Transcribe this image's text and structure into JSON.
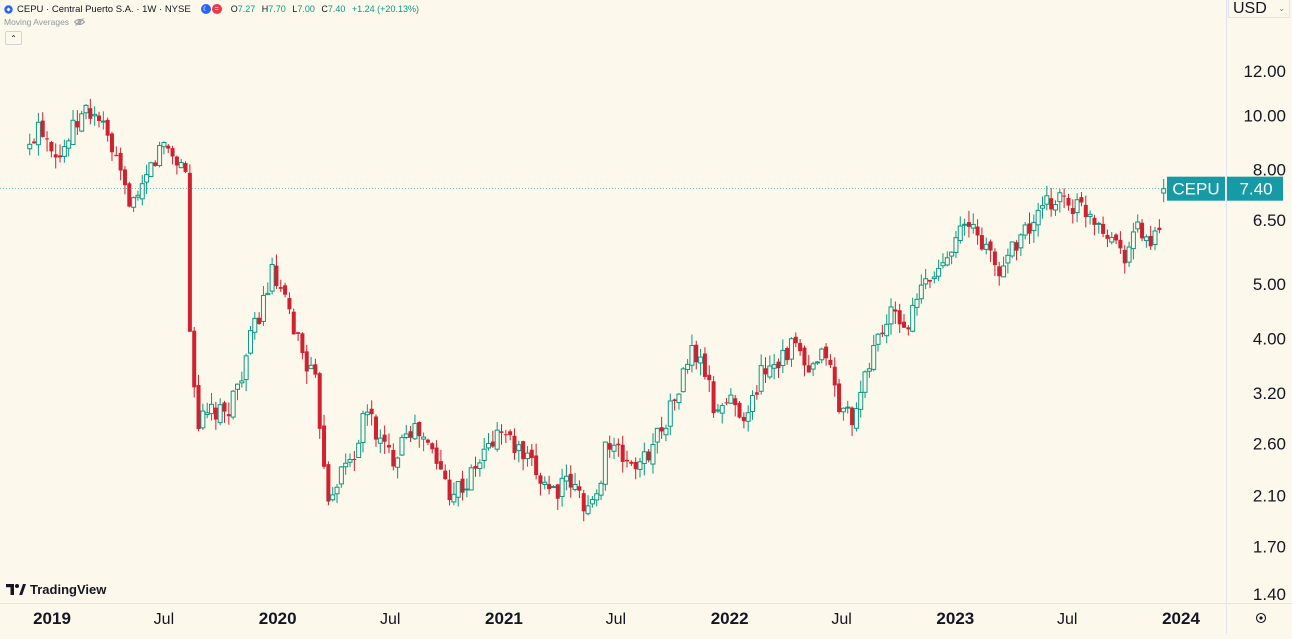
{
  "header": {
    "symbol": "CEPU · Central Puerto S.A. · 1W · NYSE",
    "ohlc": [
      {
        "k": "O",
        "v": "7.27"
      },
      {
        "k": "H",
        "v": "7.70"
      },
      {
        "k": "L",
        "v": "7.00"
      },
      {
        "k": "C",
        "v": "7.40"
      }
    ],
    "change": "+1.24 (+20.13%)",
    "indicator": "Moving Averages",
    "currency": "USD"
  },
  "brand": "TradingView",
  "colors": {
    "background": "#fdf8ec",
    "up": "#089981",
    "down": "#d1202f",
    "price_line": "#159aa6",
    "axis_text": "#131722",
    "grid_border": "#e0e3eb"
  },
  "chart_data": {
    "type": "candlestick",
    "scale": "log",
    "y_ticks": [
      "12.00",
      "10.00",
      "8.00",
      "6.50",
      "5.00",
      "4.00",
      "3.20",
      "2.60",
      "2.10",
      "1.70",
      "1.40"
    ],
    "x_ticks": [
      {
        "label": "2019",
        "date": "2019-01-01",
        "bold": true
      },
      {
        "label": "Jul",
        "date": "2019-07-01",
        "bold": false
      },
      {
        "label": "2020",
        "date": "2020-01-01",
        "bold": true
      },
      {
        "label": "Jul",
        "date": "2020-07-01",
        "bold": false
      },
      {
        "label": "2021",
        "date": "2021-01-01",
        "bold": true
      },
      {
        "label": "Jul",
        "date": "2021-07-01",
        "bold": false
      },
      {
        "label": "2022",
        "date": "2022-01-01",
        "bold": true
      },
      {
        "label": "Jul",
        "date": "2022-07-01",
        "bold": false
      },
      {
        "label": "2023",
        "date": "2023-01-01",
        "bold": true
      },
      {
        "label": "Jul",
        "date": "2023-07-01",
        "bold": false
      },
      {
        "label": "2024",
        "date": "2024-01-01",
        "bold": true
      }
    ],
    "last_price": {
      "symbol": "CEPU",
      "value": "7.40"
    },
    "anchors": [
      [
        "2018-11-26",
        8.7
      ],
      [
        "2018-12-10",
        9.8
      ],
      [
        "2018-12-24",
        9.2
      ],
      [
        "2019-01-14",
        8.5
      ],
      [
        "2019-02-04",
        9.4
      ],
      [
        "2019-02-25",
        10.2
      ],
      [
        "2019-03-18",
        9.9
      ],
      [
        "2019-04-08",
        8.6
      ],
      [
        "2019-04-29",
        7.3
      ],
      [
        "2019-05-20",
        6.9
      ],
      [
        "2019-06-10",
        8.1
      ],
      [
        "2019-07-01",
        8.9
      ],
      [
        "2019-07-22",
        8.3
      ],
      [
        "2019-08-05",
        8.0
      ],
      [
        "2019-08-12",
        4.1
      ],
      [
        "2019-08-26",
        2.8
      ],
      [
        "2019-09-16",
        2.95
      ],
      [
        "2019-10-07",
        2.9
      ],
      [
        "2019-10-28",
        3.3
      ],
      [
        "2019-11-25",
        4.2
      ],
      [
        "2019-12-23",
        5.2
      ],
      [
        "2020-01-20",
        4.4
      ],
      [
        "2020-02-10",
        3.8
      ],
      [
        "2020-03-02",
        3.3
      ],
      [
        "2020-03-23",
        2.1
      ],
      [
        "2020-04-06",
        2.25
      ],
      [
        "2020-05-04",
        2.5
      ],
      [
        "2020-05-25",
        3.0
      ],
      [
        "2020-06-15",
        2.6
      ],
      [
        "2020-07-06",
        2.45
      ],
      [
        "2020-07-27",
        2.8
      ],
      [
        "2020-08-17",
        2.7
      ],
      [
        "2020-09-07",
        2.5
      ],
      [
        "2020-10-05",
        2.15
      ],
      [
        "2020-11-02",
        2.2
      ],
      [
        "2020-11-30",
        2.5
      ],
      [
        "2020-12-28",
        2.75
      ],
      [
        "2021-01-25",
        2.5
      ],
      [
        "2021-02-22",
        2.3
      ],
      [
        "2021-03-22",
        2.15
      ],
      [
        "2021-04-19",
        2.2
      ],
      [
        "2021-05-17",
        2.0
      ],
      [
        "2021-05-31",
        2.05
      ],
      [
        "2021-06-14",
        2.6
      ],
      [
        "2021-07-12",
        2.45
      ],
      [
        "2021-08-09",
        2.35
      ],
      [
        "2021-09-06",
        2.7
      ],
      [
        "2021-10-04",
        3.1
      ],
      [
        "2021-11-01",
        3.8
      ],
      [
        "2021-11-22",
        3.5
      ],
      [
        "2021-12-06",
        3.0
      ],
      [
        "2022-01-03",
        3.1
      ],
      [
        "2022-01-31",
        2.9
      ],
      [
        "2022-02-21",
        3.5
      ],
      [
        "2022-03-21",
        3.7
      ],
      [
        "2022-04-18",
        3.9
      ],
      [
        "2022-05-09",
        3.4
      ],
      [
        "2022-06-06",
        3.8
      ],
      [
        "2022-06-27",
        3.0
      ],
      [
        "2022-07-25",
        2.9
      ],
      [
        "2022-08-22",
        3.9
      ],
      [
        "2022-09-19",
        4.4
      ],
      [
        "2022-10-17",
        4.2
      ],
      [
        "2022-11-07",
        4.9
      ],
      [
        "2022-12-05",
        5.3
      ],
      [
        "2023-01-02",
        6.2
      ],
      [
        "2023-01-30",
        6.3
      ],
      [
        "2023-02-20",
        5.8
      ],
      [
        "2023-03-13",
        5.2
      ],
      [
        "2023-04-03",
        5.9
      ],
      [
        "2023-05-01",
        6.3
      ],
      [
        "2023-05-29",
        6.9
      ],
      [
        "2023-06-19",
        7.2
      ],
      [
        "2023-07-10",
        6.9
      ],
      [
        "2023-07-31",
        6.8
      ],
      [
        "2023-08-21",
        6.5
      ],
      [
        "2023-09-11",
        6.1
      ],
      [
        "2023-10-02",
        5.7
      ],
      [
        "2023-10-23",
        6.3
      ],
      [
        "2023-11-13",
        5.9
      ],
      [
        "2023-11-27",
        6.1
      ],
      [
        "2023-12-04",
        7.4
      ]
    ]
  }
}
